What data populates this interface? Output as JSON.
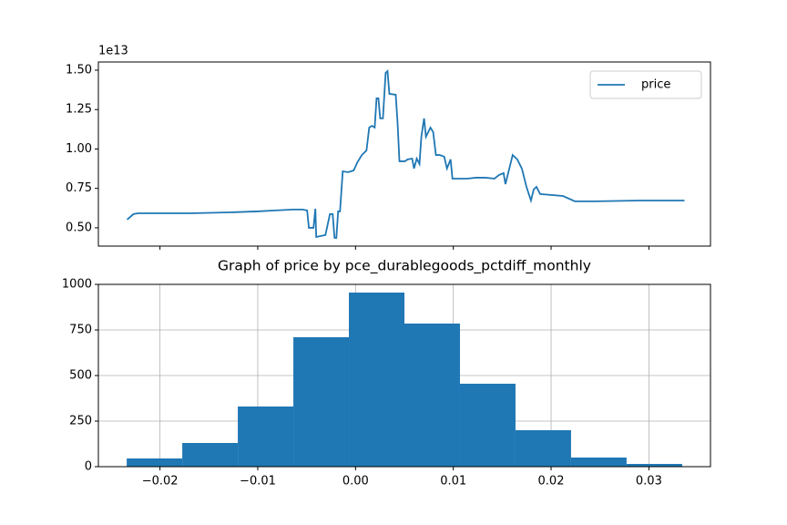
{
  "chart_data": [
    {
      "type": "line",
      "x": [
        -0.02336,
        -0.02271,
        -0.02224,
        -0.01692,
        -0.0129,
        -0.01009,
        -0.00822,
        -0.00636,
        -0.00542,
        -0.00495,
        -0.00477,
        -0.0043,
        -0.00411,
        -0.00402,
        -0.00355,
        -0.00308,
        -0.00262,
        -0.00234,
        -0.00215,
        -0.00196,
        -0.00178,
        -0.00159,
        -0.00131,
        -0.00075,
        -0.00019,
        0.00019,
        0.00065,
        0.00112,
        0.0014,
        0.00168,
        0.00196,
        0.00215,
        0.00234,
        0.00252,
        0.0028,
        0.00308,
        0.00327,
        0.00346,
        0.00411,
        0.0043,
        0.00449,
        0.00505,
        0.00533,
        0.00579,
        0.00598,
        0.00626,
        0.00654,
        0.00673,
        0.00701,
        0.0072,
        0.00766,
        0.00794,
        0.00822,
        0.0086,
        0.00907,
        0.00935,
        0.00972,
        0.00991,
        0.0114,
        0.01234,
        0.01327,
        0.01421,
        0.01467,
        0.01514,
        0.01533,
        0.01561,
        0.01607,
        0.01654,
        0.01701,
        0.01748,
        0.01794,
        0.01822,
        0.0185,
        0.01888,
        0.02121,
        0.02243,
        0.02449,
        0.02916,
        0.03364
      ],
      "series": [
        {
          "name": "price",
          "color": "#1f77b4",
          "values": [
            5520000000000.0,
            5870000000000.0,
            5920000000000.0,
            5920000000000.0,
            5980000000000.0,
            6040000000000.0,
            6100000000000.0,
            6160000000000.0,
            6160000000000.0,
            6100000000000.0,
            5000000000000.0,
            5000000000000.0,
            6210000000000.0,
            4420000000000.0,
            4480000000000.0,
            4540000000000.0,
            5870000000000.0,
            5870000000000.0,
            4360000000000.0,
            4360000000000.0,
            6040000000000.0,
            6040000000000.0,
            8580000000000.0,
            8530000000000.0,
            8640000000000.0,
            9160000000000.0,
            9620000000000.0,
            9910000000000.0,
            11360000000000.0,
            11470000000000.0,
            11360000000000.0,
            13210000000000.0,
            13210000000000.0,
            11940000000000.0,
            11940000000000.0,
            14830000000000.0,
            14940000000000.0,
            13500000000000.0,
            13440000000000.0,
            11650000000000.0,
            9220000000000.0,
            9220000000000.0,
            9340000000000.0,
            9390000000000.0,
            8760000000000.0,
            9390000000000.0,
            9050000000000.0,
            10780000000000.0,
            11940000000000.0,
            10780000000000.0,
            11360000000000.0,
            11070000000000.0,
            9620000000000.0,
            9620000000000.0,
            9510000000000.0,
            8760000000000.0,
            9340000000000.0,
            8120000000000.0,
            8120000000000.0,
            8180000000000.0,
            8180000000000.0,
            8120000000000.0,
            8350000000000.0,
            8470000000000.0,
            7770000000000.0,
            8470000000000.0,
            9620000000000.0,
            9340000000000.0,
            8760000000000.0,
            7600000000000.0,
            6730000000000.0,
            7430000000000.0,
            7600000000000.0,
            7140000000000.0,
            7020000000000.0,
            6680000000000.0,
            6680000000000.0,
            6730000000000.0,
            6730000000000.0
          ]
        }
      ],
      "xlim": [
        -0.0263,
        0.0363
      ],
      "xticks": [
        -0.02,
        -0.01,
        0,
        0.01,
        0.02,
        0.03
      ],
      "ylim": [
        3840000000000.0,
        15520000000000.0
      ],
      "yticks": [
        {
          "value": 5000000000000.0,
          "label": "0.50"
        },
        {
          "value": 7500000000000.0,
          "label": "0.75"
        },
        {
          "value": 10000000000000.0,
          "label": "1.00"
        },
        {
          "value": 12500000000000.0,
          "label": "1.25"
        },
        {
          "value": 15000000000000.0,
          "label": "1.50"
        }
      ],
      "y_offset_label": "1e13",
      "legend": "upper right",
      "grid": false
    },
    {
      "type": "histogram",
      "title": "Graph of price by pce_durablegoods_pctdiff_monthly",
      "bins": [
        -0.0234,
        -0.01772,
        -0.01204,
        -0.00636,
        -0.00068,
        0.005,
        0.01068,
        0.01636,
        0.02204,
        0.02772,
        0.0334
      ],
      "values": [
        45,
        130,
        330,
        710,
        955,
        785,
        455,
        200,
        50,
        15
      ],
      "color": "#1f77b4",
      "xlim": [
        -0.0263,
        0.0363
      ],
      "xticks": [
        {
          "value": -0.02,
          "label": "−0.02"
        },
        {
          "value": -0.01,
          "label": "−0.01"
        },
        {
          "value": 0,
          "label": "0.00"
        },
        0.01,
        0.02,
        0.03
      ],
      "ylim": [
        0,
        1000
      ],
      "yticks": [
        0,
        250,
        500,
        750,
        1000
      ],
      "grid": true
    }
  ]
}
